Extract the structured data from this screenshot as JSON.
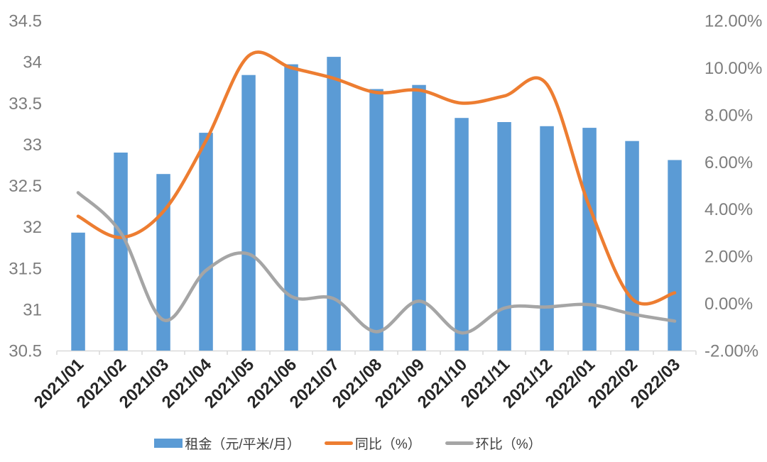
{
  "chart_data": {
    "type": "combo-bar-line",
    "title": "",
    "categories": [
      "2021/01",
      "2021/02",
      "2021/03",
      "2021/04",
      "2021/05",
      "2021/06",
      "2021/07",
      "2021/08",
      "2021/09",
      "2021/10",
      "2021/11",
      "2021/12",
      "2022/01",
      "2022/02",
      "2022/03"
    ],
    "series": [
      {
        "name": "租金（元/平米/月）",
        "type": "bar",
        "axis": "left",
        "color": "#5B9BD5",
        "values": [
          31.93,
          32.9,
          32.64,
          33.14,
          33.84,
          33.97,
          34.06,
          33.67,
          33.72,
          33.32,
          33.27,
          33.22,
          33.2,
          33.04,
          32.81
        ]
      },
      {
        "name": "同比（%）",
        "type": "line",
        "axis": "right",
        "color": "#ED7D31",
        "values": [
          3.7,
          2.8,
          3.9,
          6.9,
          10.5,
          10.0,
          9.55,
          8.95,
          9.05,
          8.5,
          8.8,
          9.3,
          4.1,
          0.2,
          0.45
        ]
      },
      {
        "name": "环比（%）",
        "type": "line",
        "axis": "right",
        "color": "#A5A5A5",
        "values": [
          4.7,
          3.0,
          -0.7,
          1.4,
          2.1,
          0.3,
          0.2,
          -1.2,
          0.1,
          -1.25,
          -0.2,
          -0.15,
          -0.05,
          -0.45,
          -0.75
        ]
      }
    ],
    "left_axis": {
      "min": 30.5,
      "max": 34.5,
      "step": 0.5,
      "ticks": [
        "34.5",
        "34",
        "33.5",
        "33",
        "32.5",
        "32",
        "31.5",
        "31",
        "30.5"
      ]
    },
    "right_axis": {
      "min": -2,
      "max": 12,
      "step": 2,
      "ticks": [
        "12.00%",
        "10.00%",
        "8.00%",
        "6.00%",
        "4.00%",
        "2.00%",
        "0.00%",
        "-2.00%"
      ]
    },
    "legend_position": "bottom",
    "grid": false
  },
  "colors": {
    "bar_blue": "#5B9BD5",
    "line_orange": "#ED7D31",
    "line_gray": "#A5A5A5",
    "axis_text_gray": "#7D7D7D",
    "x_label_dark": "#262626",
    "axis_line": "#D9D9D9",
    "background": "#FFFFFF"
  }
}
